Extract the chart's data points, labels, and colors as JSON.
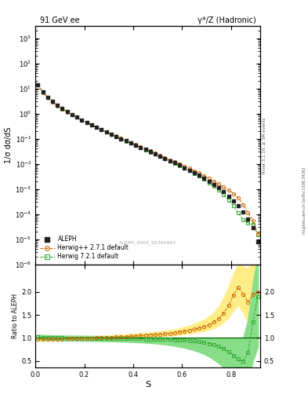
{
  "title_left": "91 GeV ee",
  "title_right": "γ*/Z (Hadronic)",
  "ylabel_main": "1/σ dσ/dS",
  "ylabel_ratio": "Ratio to ALEPH",
  "xlabel": "S",
  "right_label": "Rivet 3.1.10, ≥ 3M events",
  "watermark": "ALEPH_2004_S5765862",
  "mcplots_label": "mcplots.cern.ch [arXiv:1306.3436]",
  "ylim_main": [
    1e-06,
    3000
  ],
  "xlim": [
    0.0,
    0.92
  ],
  "ylim_ratio": [
    0.35,
    2.6
  ],
  "aleph_color": "#222222",
  "herwig_pp_color": "#cc6600",
  "herwig72_color": "#33aa33",
  "herwig_pp_band_color": "#ffee88",
  "herwig72_band_color": "#88dd88",
  "x": [
    0.01,
    0.03,
    0.05,
    0.07,
    0.09,
    0.11,
    0.13,
    0.15,
    0.17,
    0.19,
    0.21,
    0.23,
    0.25,
    0.27,
    0.29,
    0.31,
    0.33,
    0.35,
    0.37,
    0.39,
    0.41,
    0.43,
    0.45,
    0.47,
    0.49,
    0.51,
    0.53,
    0.55,
    0.57,
    0.59,
    0.61,
    0.63,
    0.65,
    0.67,
    0.69,
    0.71,
    0.73,
    0.75,
    0.77,
    0.79,
    0.81,
    0.83,
    0.85,
    0.87,
    0.89,
    0.91
  ],
  "aleph_y": [
    14.0,
    7.2,
    4.5,
    3.0,
    2.1,
    1.55,
    1.18,
    0.91,
    0.71,
    0.56,
    0.445,
    0.355,
    0.285,
    0.23,
    0.186,
    0.151,
    0.123,
    0.1,
    0.082,
    0.067,
    0.055,
    0.045,
    0.037,
    0.03,
    0.025,
    0.02,
    0.016,
    0.013,
    0.011,
    0.0088,
    0.007,
    0.0056,
    0.0044,
    0.0035,
    0.0027,
    0.002,
    0.0015,
    0.0011,
    0.00076,
    0.00052,
    0.00034,
    0.00021,
    0.00012,
    6.5e-05,
    2.8e-05,
    8e-06
  ],
  "aleph_yerr_lo": [
    0.3,
    0.15,
    0.09,
    0.06,
    0.04,
    0.03,
    0.022,
    0.016,
    0.013,
    0.01,
    0.008,
    0.006,
    0.005,
    0.004,
    0.0035,
    0.0028,
    0.0022,
    0.0018,
    0.0015,
    0.0012,
    0.001,
    0.0008,
    0.0007,
    0.0006,
    0.0005,
    0.0004,
    0.00033,
    0.00027,
    0.00022,
    0.00018,
    0.00014,
    0.00011,
    9e-05,
    7e-05,
    5.5e-05,
    4.2e-05,
    3.2e-05,
    2.4e-05,
    1.7e-05,
    1.2e-05,
    8e-06,
    5e-06,
    3e-06,
    1.8e-06,
    1e-06,
    3.5e-07
  ],
  "herwig_pp_ratio": [
    0.97,
    0.97,
    0.97,
    0.975,
    0.975,
    0.98,
    0.982,
    0.985,
    0.988,
    0.99,
    0.993,
    0.997,
    1.0,
    1.005,
    1.01,
    1.015,
    1.02,
    1.025,
    1.03,
    1.037,
    1.043,
    1.05,
    1.057,
    1.065,
    1.072,
    1.08,
    1.09,
    1.1,
    1.115,
    1.13,
    1.148,
    1.168,
    1.19,
    1.215,
    1.245,
    1.285,
    1.34,
    1.42,
    1.54,
    1.7,
    1.92,
    2.1,
    1.95,
    1.78,
    1.95,
    2.0
  ],
  "herwig72_ratio": [
    1.02,
    1.01,
    1.005,
    1.0,
    1.0,
    0.998,
    0.997,
    0.996,
    0.995,
    0.995,
    0.994,
    0.993,
    0.992,
    0.991,
    0.99,
    0.989,
    0.988,
    0.987,
    0.986,
    0.984,
    0.983,
    0.981,
    0.979,
    0.977,
    0.975,
    0.972,
    0.969,
    0.965,
    0.96,
    0.955,
    0.948,
    0.94,
    0.93,
    0.917,
    0.9,
    0.878,
    0.85,
    0.812,
    0.762,
    0.7,
    0.62,
    0.538,
    0.49,
    0.68,
    1.35,
    1.9
  ],
  "herwig_pp_band_lo": [
    0.93,
    0.935,
    0.94,
    0.945,
    0.95,
    0.952,
    0.955,
    0.958,
    0.961,
    0.964,
    0.967,
    0.97,
    0.973,
    0.977,
    0.981,
    0.985,
    0.989,
    0.993,
    0.997,
    1.002,
    1.007,
    1.013,
    1.019,
    1.025,
    1.031,
    1.038,
    1.046,
    1.054,
    1.063,
    1.073,
    1.085,
    1.098,
    1.114,
    1.132,
    1.153,
    1.18,
    1.215,
    1.265,
    1.34,
    1.45,
    1.6,
    1.72,
    1.55,
    1.35,
    1.45,
    1.5
  ],
  "herwig_pp_band_hi": [
    1.01,
    1.01,
    1.01,
    1.012,
    1.012,
    1.015,
    1.018,
    1.021,
    1.024,
    1.028,
    1.031,
    1.035,
    1.04,
    1.045,
    1.05,
    1.056,
    1.063,
    1.07,
    1.078,
    1.086,
    1.094,
    1.102,
    1.11,
    1.12,
    1.13,
    1.142,
    1.155,
    1.17,
    1.188,
    1.21,
    1.236,
    1.268,
    1.305,
    1.348,
    1.4,
    1.465,
    1.55,
    1.68,
    1.87,
    2.1,
    2.4,
    2.6,
    2.55,
    2.5,
    2.7,
    2.8
  ],
  "herwig72_band_lo": [
    0.97,
    0.96,
    0.955,
    0.95,
    0.948,
    0.946,
    0.944,
    0.942,
    0.94,
    0.938,
    0.936,
    0.934,
    0.932,
    0.93,
    0.928,
    0.926,
    0.923,
    0.92,
    0.916,
    0.912,
    0.907,
    0.902,
    0.896,
    0.888,
    0.88,
    0.87,
    0.858,
    0.844,
    0.828,
    0.808,
    0.786,
    0.76,
    0.73,
    0.694,
    0.65,
    0.596,
    0.53,
    0.45,
    0.355,
    0.25,
    0.14,
    0.07,
    0.05,
    0.1,
    0.5,
    0.8
  ],
  "herwig72_band_hi": [
    1.07,
    1.065,
    1.06,
    1.055,
    1.053,
    1.052,
    1.05,
    1.048,
    1.047,
    1.046,
    1.045,
    1.043,
    1.042,
    1.04,
    1.038,
    1.036,
    1.034,
    1.032,
    1.029,
    1.027,
    1.025,
    1.022,
    1.02,
    1.018,
    1.015,
    1.013,
    1.01,
    1.008,
    1.005,
    1.003,
    1.001,
    1.0,
    0.999,
    0.999,
    0.998,
    0.998,
    0.998,
    0.998,
    0.998,
    0.998,
    0.998,
    0.998,
    0.998,
    1.4,
    2.2,
    2.8
  ]
}
